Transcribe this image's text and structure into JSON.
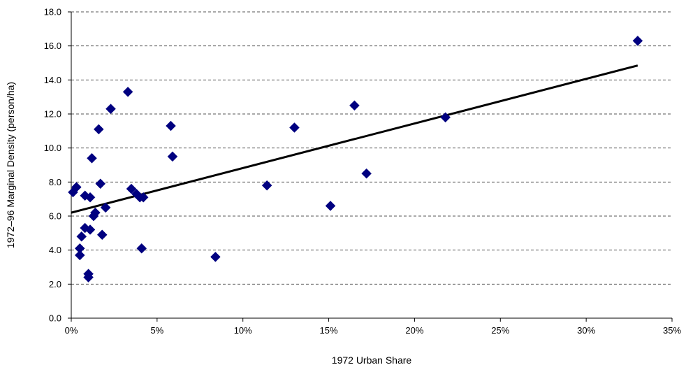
{
  "chart_data": {
    "type": "scatter",
    "title": "",
    "xlabel": "1972 Urban Share",
    "ylabel": "1972–96 Marginal Density (person/ha)",
    "xlim": [
      0,
      0.35
    ],
    "ylim": [
      0,
      18
    ],
    "x_ticks": [
      0,
      0.05,
      0.1,
      0.15,
      0.2,
      0.25,
      0.3,
      0.35
    ],
    "x_tick_labels": [
      "0%",
      "5%",
      "10%",
      "15%",
      "20%",
      "25%",
      "30%",
      "35%"
    ],
    "y_ticks": [
      0,
      2,
      4,
      6,
      8,
      10,
      12,
      14,
      16,
      18
    ],
    "y_tick_labels": [
      "0.0",
      "2.0",
      "4.0",
      "6.0",
      "8.0",
      "10.0",
      "12.0",
      "14.0",
      "16.0",
      "18.0"
    ],
    "grid": "horizontal dashed",
    "marker_color": "#000080",
    "points": [
      {
        "x": 0.001,
        "y": 7.4
      },
      {
        "x": 0.003,
        "y": 7.7
      },
      {
        "x": 0.005,
        "y": 4.1
      },
      {
        "x": 0.005,
        "y": 3.7
      },
      {
        "x": 0.006,
        "y": 4.8
      },
      {
        "x": 0.008,
        "y": 7.2
      },
      {
        "x": 0.008,
        "y": 5.3
      },
      {
        "x": 0.01,
        "y": 2.6
      },
      {
        "x": 0.01,
        "y": 2.4
      },
      {
        "x": 0.011,
        "y": 7.1
      },
      {
        "x": 0.011,
        "y": 5.2
      },
      {
        "x": 0.012,
        "y": 9.4
      },
      {
        "x": 0.013,
        "y": 6.0
      },
      {
        "x": 0.014,
        "y": 6.2
      },
      {
        "x": 0.016,
        "y": 11.1
      },
      {
        "x": 0.017,
        "y": 7.9
      },
      {
        "x": 0.018,
        "y": 4.9
      },
      {
        "x": 0.02,
        "y": 6.5
      },
      {
        "x": 0.023,
        "y": 12.3
      },
      {
        "x": 0.033,
        "y": 13.3
      },
      {
        "x": 0.035,
        "y": 7.6
      },
      {
        "x": 0.038,
        "y": 7.3
      },
      {
        "x": 0.04,
        "y": 7.1
      },
      {
        "x": 0.041,
        "y": 4.1
      },
      {
        "x": 0.042,
        "y": 7.1
      },
      {
        "x": 0.058,
        "y": 11.3
      },
      {
        "x": 0.059,
        "y": 9.5
      },
      {
        "x": 0.084,
        "y": 3.6
      },
      {
        "x": 0.114,
        "y": 7.8
      },
      {
        "x": 0.13,
        "y": 11.2
      },
      {
        "x": 0.151,
        "y": 6.6
      },
      {
        "x": 0.165,
        "y": 12.5
      },
      {
        "x": 0.172,
        "y": 8.5
      },
      {
        "x": 0.218,
        "y": 11.8
      },
      {
        "x": 0.33,
        "y": 16.3
      }
    ],
    "trendline": {
      "type": "linear",
      "x": [
        0,
        0.33
      ],
      "y": [
        6.2,
        14.85
      ],
      "color": "#000000"
    }
  }
}
